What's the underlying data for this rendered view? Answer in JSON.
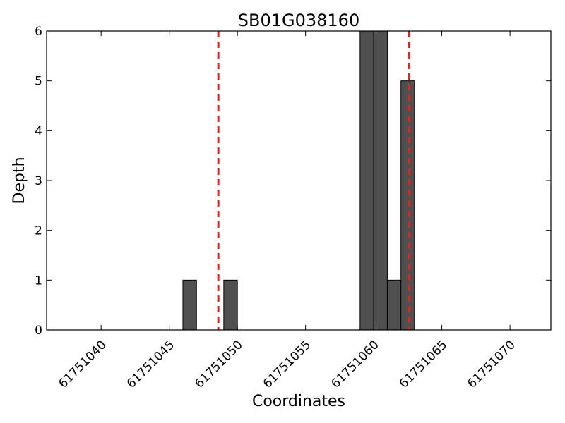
{
  "chart_data": {
    "type": "bar",
    "title": "SB01G038160",
    "xlabel": "Coordinates",
    "ylabel": "Depth",
    "xlim": [
      61751036,
      61751073
    ],
    "ylim": [
      0,
      6
    ],
    "x_ticks": [
      61751040,
      61751045,
      61751050,
      61751055,
      61751060,
      61751065,
      61751070
    ],
    "y_ticks": [
      0,
      1,
      2,
      3,
      4,
      5,
      6
    ],
    "bar_width": 1,
    "bars": [
      {
        "x": 61751046,
        "value": 1
      },
      {
        "x": 61751049,
        "value": 1
      },
      {
        "x": 61751059,
        "value": 6
      },
      {
        "x": 61751060,
        "value": 6
      },
      {
        "x": 61751061,
        "value": 1
      },
      {
        "x": 61751062,
        "value": 5
      }
    ],
    "vlines": [
      61751048.6,
      61751062.6
    ],
    "bar_color": "#505050",
    "vline_color": "#e8211a",
    "grid": false
  }
}
